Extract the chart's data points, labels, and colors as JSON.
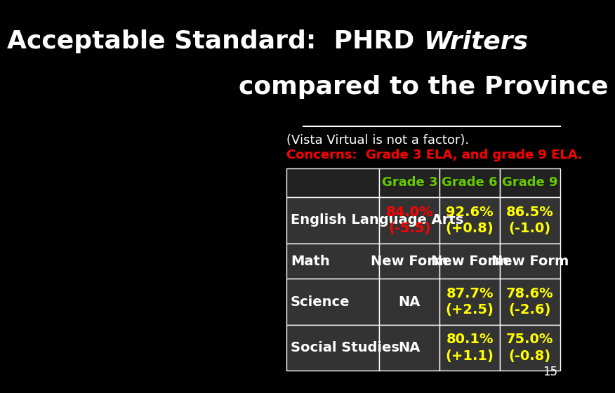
{
  "title_line1": "Acceptable Standard:  PHRD ",
  "title_italic": "Writers",
  "title_line2": "compared to the Province",
  "subtitle1": "(Vista Virtual is not a factor).",
  "subtitle2": "Concerns:  Grade 3 ELA, and grade 9 ELA.",
  "subtitle1_color": "#ffffff",
  "subtitle2_color": "#ff0000",
  "background_color": "#000000",
  "table_bg_dark": "#333333",
  "table_bg_header": "#222222",
  "header_text_color": "#66cc00",
  "border_color": "#ffffff",
  "col_headers": [
    "",
    "Grade 3",
    "Grade 6",
    "Grade 9"
  ],
  "rows": [
    {
      "label": "English Language Arts",
      "cells": [
        {
          "text": "84.0%\n(-5.5)",
          "color": "#ff0000"
        },
        {
          "text": "92.6%\n(+0.8)",
          "color": "#ffff00"
        },
        {
          "text": "86.5%\n(-1.0)",
          "color": "#ffff00"
        }
      ]
    },
    {
      "label": "Math",
      "cells": [
        {
          "text": "New Form",
          "color": "#ffffff"
        },
        {
          "text": "New Form",
          "color": "#ffffff"
        },
        {
          "text": "New Form",
          "color": "#ffffff"
        }
      ]
    },
    {
      "label": "Science",
      "cells": [
        {
          "text": "NA",
          "color": "#ffffff"
        },
        {
          "text": "87.7%\n(+2.5)",
          "color": "#ffff00"
        },
        {
          "text": "78.6%\n(-2.6)",
          "color": "#ffff00"
        }
      ]
    },
    {
      "label": "Social Studies",
      "cells": [
        {
          "text": "NA",
          "color": "#ffffff"
        },
        {
          "text": "80.1%\n(+1.1)",
          "color": "#ffff00"
        },
        {
          "text": "75.0%\n(-0.8)",
          "color": "#ffff00"
        }
      ]
    }
  ],
  "page_number": "15",
  "title_fontsize": 26,
  "subtitle_fontsize": 13,
  "header_fontsize": 13,
  "cell_fontsize": 14,
  "label_fontsize": 14
}
